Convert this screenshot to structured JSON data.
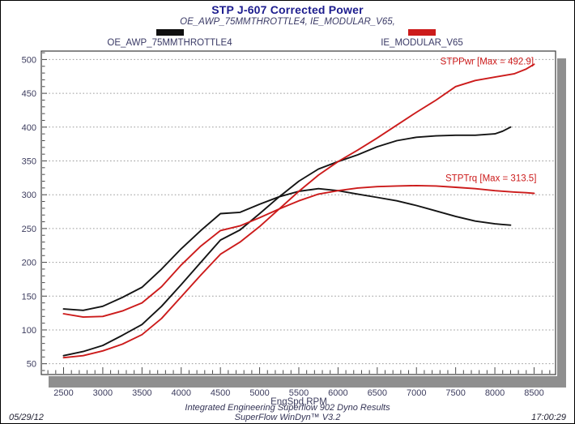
{
  "header": {
    "title": "STP J-607 Corrected Power",
    "subtitle": "OE_AWP_75MMTHROTTLE4, IE_MODULAR_V65,"
  },
  "legend": {
    "items": [
      {
        "label": "OE_AWP_75MMTHROTTLE4",
        "color": "#101010"
      },
      {
        "label": "IE_MODULAR_V65",
        "color": "#cc1b1b"
      }
    ]
  },
  "footer": {
    "line1": "Integrated Engineering Superflow 902 Dyno Results",
    "line2": "SuperFlow WinDyn™ V3.2",
    "date": "05/29/12",
    "time": "17:00:29"
  },
  "chart_data": {
    "type": "line",
    "title": "STP J-607 Corrected Power",
    "subtitle": "OE_AWP_75MMTHROTTLE4, IE_MODULAR_V65,",
    "xlabel": "EngSpd RPM",
    "ylabel": "",
    "xlim": [
      2216,
      8774
    ],
    "ylim": [
      34,
      512.5
    ],
    "x_ticks": [
      2500,
      3000,
      3500,
      4000,
      4500,
      5000,
      5500,
      6000,
      6500,
      7000,
      7500,
      8000,
      8500
    ],
    "y_ticks": [
      50,
      100,
      150,
      200,
      250,
      300,
      350,
      400,
      450,
      500
    ],
    "grid": "horizontal dotted gridlines at each y tick",
    "legend_position": "top",
    "grid_color": "#9a9a9a",
    "tick_label_color": "#3c3c5e",
    "axis_color": "#3a3a3a",
    "shadow_color": "#8f8f8f",
    "series": [
      {
        "name": "STPTrq_OE_AWP_75MMTHROTTLE4",
        "color": "#141414",
        "x": [
          2500,
          2750,
          3000,
          3250,
          3500,
          3750,
          4000,
          4250,
          4500,
          4750,
          5000,
          5250,
          5500,
          5750,
          6000,
          6250,
          6500,
          6750,
          7000,
          7250,
          7500,
          7750,
          8000,
          8100,
          8200
        ],
        "y": [
          131,
          129,
          135,
          148,
          163,
          190,
          220,
          247,
          272,
          274,
          286,
          297,
          305,
          309,
          306,
          301,
          296,
          291,
          284,
          276,
          268,
          261,
          257,
          256,
          255
        ]
      },
      {
        "name": "STPPwr_OE_AWP_75MMTHROTTLE4",
        "color": "#141414",
        "x": [
          2500,
          2750,
          3000,
          3250,
          3500,
          3750,
          4000,
          4250,
          4500,
          4750,
          5000,
          5250,
          5500,
          5750,
          6000,
          6250,
          6500,
          6750,
          7000,
          7250,
          7500,
          7750,
          8000,
          8100,
          8200
        ],
        "y": [
          62,
          68,
          77,
          92,
          108,
          135,
          167,
          200,
          233,
          248,
          272,
          297,
          320,
          338,
          349,
          359,
          371,
          380,
          385,
          387,
          388,
          388,
          390,
          394,
          400
        ]
      },
      {
        "name": "STPTrq_IE_MODULAR_V65",
        "color": "#cc1b1b",
        "x": [
          2500,
          2750,
          3000,
          3250,
          3500,
          3750,
          4000,
          4250,
          4500,
          4750,
          5000,
          5250,
          5500,
          5750,
          6000,
          6250,
          6500,
          6750,
          7000,
          7250,
          7500,
          7750,
          8000,
          8250,
          8400,
          8500
        ],
        "y": [
          124,
          119,
          120,
          128,
          140,
          164,
          196,
          224,
          247,
          254,
          266,
          279,
          291,
          301,
          306,
          310,
          312,
          313,
          313.5,
          313,
          311,
          309,
          306,
          304,
          303,
          302
        ]
      },
      {
        "name": "STPPwr_IE_MODULAR_V65",
        "color": "#cc1b1b",
        "x": [
          2500,
          2750,
          3000,
          3250,
          3500,
          3750,
          4000,
          4250,
          4500,
          4750,
          5000,
          5250,
          5500,
          5750,
          6000,
          6250,
          6500,
          6750,
          7000,
          7250,
          7500,
          7750,
          8000,
          8250,
          8400,
          8500
        ],
        "y": [
          59,
          62,
          69,
          79,
          93,
          117,
          149,
          181,
          212,
          230,
          253,
          279,
          305,
          329,
          349,
          366,
          384,
          403,
          422,
          440,
          460,
          469,
          474,
          479,
          486,
          492.9
        ]
      }
    ],
    "annotations": [
      {
        "text": "STPPwr [Max = 492.9]",
        "rpm": 7900,
        "value": 497.5,
        "color": "#cc1b1b"
      },
      {
        "text": "STPTrq [Max = 313.5]",
        "rpm": 7950,
        "value": 325,
        "color": "#cc1b1b"
      }
    ]
  }
}
